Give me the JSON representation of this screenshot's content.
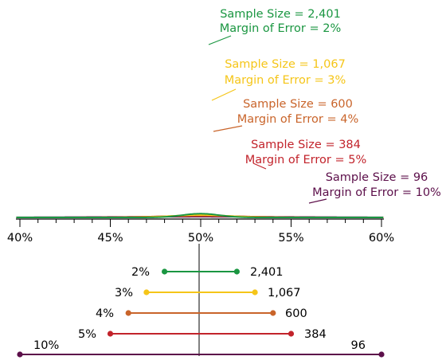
{
  "chart_data": {
    "type": "line",
    "x_axis": {
      "range": [
        0.395,
        0.605
      ],
      "ticks": [
        0.4,
        0.45,
        0.5,
        0.55,
        0.6
      ],
      "tick_labels": [
        "40%",
        "45%",
        "50%",
        "55%",
        "60%"
      ],
      "minor_tick_step": 0.01
    },
    "center": 0.5,
    "series": [
      {
        "sample_size": 2401,
        "margin_of_error": 0.02,
        "color": "#1a9641",
        "label_line1": "Sample Size = 2,401",
        "label_line2": "Margin of Error = 2%",
        "ci_left": "2%",
        "ci_right": "2,401"
      },
      {
        "sample_size": 1067,
        "margin_of_error": 0.03,
        "color": "#f5c518",
        "label_line1": "Sample Size = 1,067",
        "label_line2": "Margin of Error = 3%",
        "ci_left": "3%",
        "ci_right": "1,067"
      },
      {
        "sample_size": 600,
        "margin_of_error": 0.04,
        "color": "#c9642a",
        "label_line1": "Sample Size = 600",
        "label_line2": "Margin of Error = 4%",
        "ci_left": "4%",
        "ci_right": "600"
      },
      {
        "sample_size": 384,
        "margin_of_error": 0.05,
        "color": "#c2232b",
        "label_line1": "Sample Size = 384",
        "label_line2": "Margin of Error = 5%",
        "ci_left": "5%",
        "ci_right": "384"
      },
      {
        "sample_size": 96,
        "margin_of_error": 0.1,
        "color": "#5c0f4a",
        "label_line1": "Sample Size = 96",
        "label_line2": "Margin of Error = 10%",
        "ci_left": "10%",
        "ci_right": "96"
      }
    ]
  }
}
